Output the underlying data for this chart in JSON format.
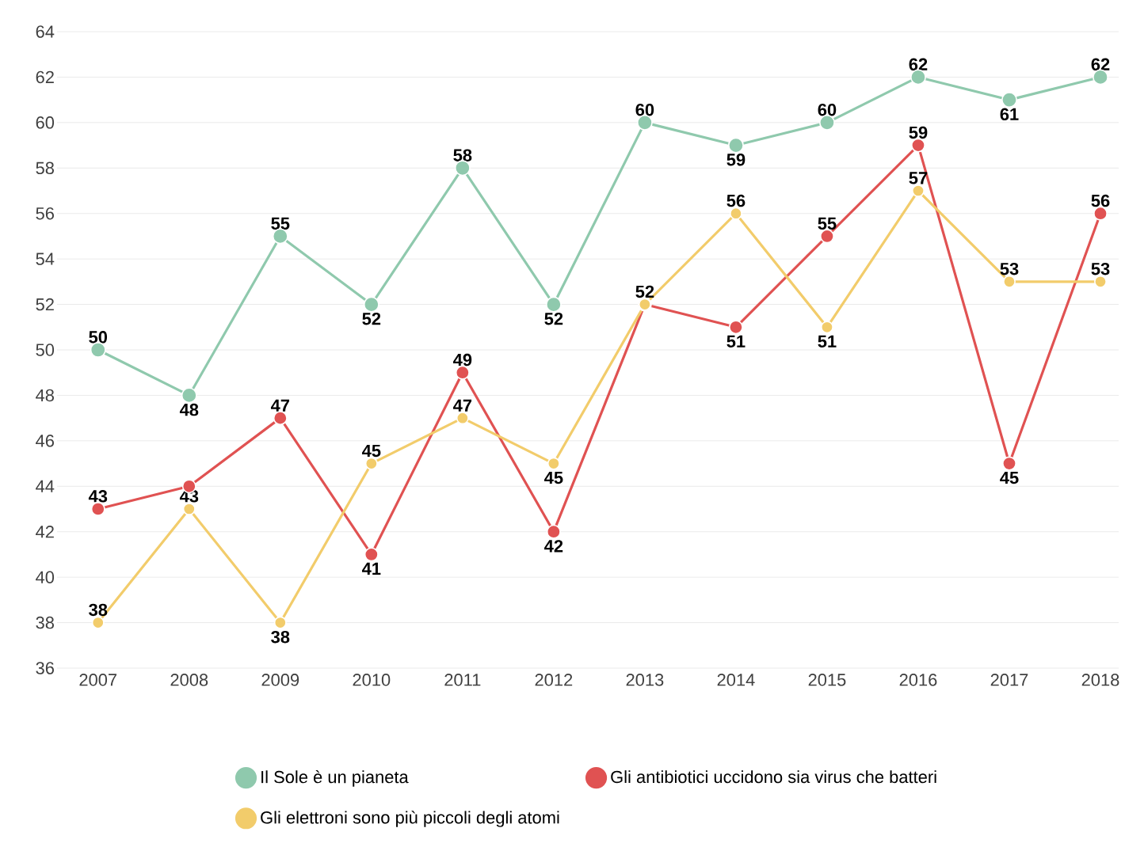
{
  "chart_data": {
    "type": "line",
    "categories": [
      "2007",
      "2008",
      "2009",
      "2010",
      "2011",
      "2012",
      "2013",
      "2014",
      "2015",
      "2016",
      "2017",
      "2018"
    ],
    "series": [
      {
        "name": "Il Sole è un pianeta",
        "color": "#8fc9ad",
        "values": [
          50,
          48,
          55,
          52,
          58,
          52,
          60,
          59,
          60,
          62,
          61,
          62
        ],
        "value_labels": [
          "50",
          "48",
          "55",
          "52",
          "58",
          "52",
          "60",
          "59",
          "60",
          "62",
          "61",
          "62"
        ]
      },
      {
        "name": "Gli antibiotici uccidono sia virus che batteri",
        "color": "#e05252",
        "values": [
          43,
          44,
          47,
          41,
          49,
          42,
          52,
          51,
          55,
          59,
          45,
          56
        ],
        "value_labels": [
          "43",
          null,
          "47",
          "41",
          "49",
          "42",
          null,
          "51",
          "55",
          "59",
          "45",
          "56"
        ]
      },
      {
        "name": "Gli elettroni sono più piccoli degli atomi",
        "color": "#f2cc6b",
        "values": [
          38,
          43,
          38,
          45,
          47,
          45,
          52,
          56,
          51,
          57,
          53,
          53
        ],
        "value_labels": [
          "38",
          "43",
          "38",
          "45",
          "47",
          "45",
          "52",
          "56",
          "51",
          "57",
          "53",
          "53"
        ]
      }
    ],
    "ylim": [
      36,
      64
    ],
    "yticks": [
      36,
      38,
      40,
      42,
      44,
      46,
      48,
      50,
      52,
      54,
      56,
      58,
      60,
      62,
      64
    ],
    "grid": "y",
    "legend": "bottom",
    "marker": "circle",
    "line_style": "solid"
  }
}
